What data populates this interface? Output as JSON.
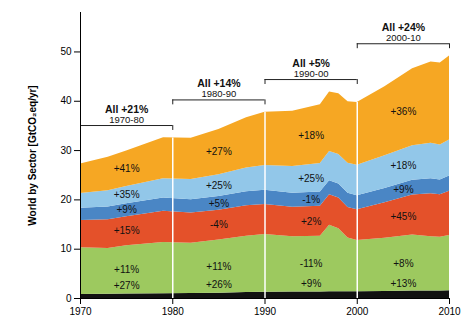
{
  "chart_data": {
    "type": "area",
    "stacked": true,
    "ylabel": "World by Sector [GtCO₂eq/yr]",
    "x": [
      1970,
      1973,
      1975,
      1979,
      1982,
      1985,
      1988,
      1990,
      1993,
      1996,
      1997,
      1998,
      1999,
      2000,
      2003,
      2006,
      2008,
      2009,
      2010
    ],
    "xlim": [
      1970,
      2010
    ],
    "xticks": [
      1970,
      1980,
      1990,
      2000,
      2010
    ],
    "ylim": [
      0,
      58
    ],
    "yticks": [
      0,
      10,
      20,
      30,
      40,
      50
    ],
    "series": [
      {
        "color": "#111111",
        "values": [
          0.8,
          0.86,
          0.9,
          0.98,
          1.02,
          1.08,
          1.2,
          1.27,
          1.3,
          1.33,
          1.35,
          1.36,
          1.37,
          1.38,
          1.43,
          1.5,
          1.53,
          1.54,
          1.56
        ],
        "decade_labels": [
          "+27%",
          "+26%",
          "+9%",
          "+13%"
        ]
      },
      {
        "color": "#9dc95f",
        "values": [
          9.5,
          9.3,
          9.8,
          10.4,
          10.2,
          10.8,
          11.4,
          11.7,
          11.2,
          11.3,
          13.5,
          12.8,
          10.9,
          10.4,
          10.8,
          11.4,
          11.0,
          10.9,
          11.2
        ],
        "decade_labels": [
          "+11%",
          "+11%",
          "-11%",
          "+8%"
        ]
      },
      {
        "color": "#e4512a",
        "values": [
          5.5,
          5.8,
          5.9,
          6.3,
          6.1,
          6.0,
          6.2,
          6.1,
          6.0,
          6.1,
          6.2,
          6.2,
          6.2,
          6.2,
          7.2,
          8.1,
          8.7,
          8.6,
          9.0
        ],
        "decade_labels": [
          "+15%",
          "-4%",
          "+2%",
          "+45%"
        ]
      },
      {
        "color": "#4a86c5",
        "values": [
          2.5,
          2.6,
          2.6,
          2.7,
          2.7,
          2.8,
          2.85,
          2.9,
          2.85,
          2.85,
          2.85,
          2.85,
          2.85,
          2.85,
          2.9,
          3.0,
          3.05,
          3.0,
          3.1
        ],
        "decade_labels": [
          "+9%",
          "+5%",
          "-1%",
          "+9%"
        ]
      },
      {
        "color": "#92c7e9",
        "values": [
          3.0,
          3.3,
          3.5,
          3.9,
          4.1,
          4.4,
          4.8,
          5.0,
          5.4,
          5.8,
          5.9,
          6.0,
          6.1,
          6.2,
          6.6,
          7.0,
          7.2,
          7.1,
          7.3
        ],
        "decade_labels": [
          "+35%",
          "+25%",
          "+25%",
          "+18%"
        ]
      },
      {
        "color": "#f6a723",
        "values": [
          6.0,
          6.8,
          7.2,
          8.3,
          8.4,
          9.2,
          10.2,
          10.8,
          11.2,
          11.9,
          12.1,
          12.3,
          12.5,
          12.7,
          14.0,
          15.6,
          16.5,
          16.6,
          17.0
        ],
        "decade_labels": [
          "+41%",
          "+27%",
          "+18%",
          "+36%"
        ]
      }
    ],
    "periods": [
      {
        "start": 1970,
        "end": 1980,
        "label": "1970-80",
        "total_label": "All +21%"
      },
      {
        "start": 1980,
        "end": 1990,
        "label": "1980-90",
        "total_label": "All +14%"
      },
      {
        "start": 1990,
        "end": 2000,
        "label": "1990-00",
        "total_label": "All +5%"
      },
      {
        "start": 2000,
        "end": 2010,
        "label": "2000-10",
        "total_label": "All +24%"
      }
    ]
  }
}
